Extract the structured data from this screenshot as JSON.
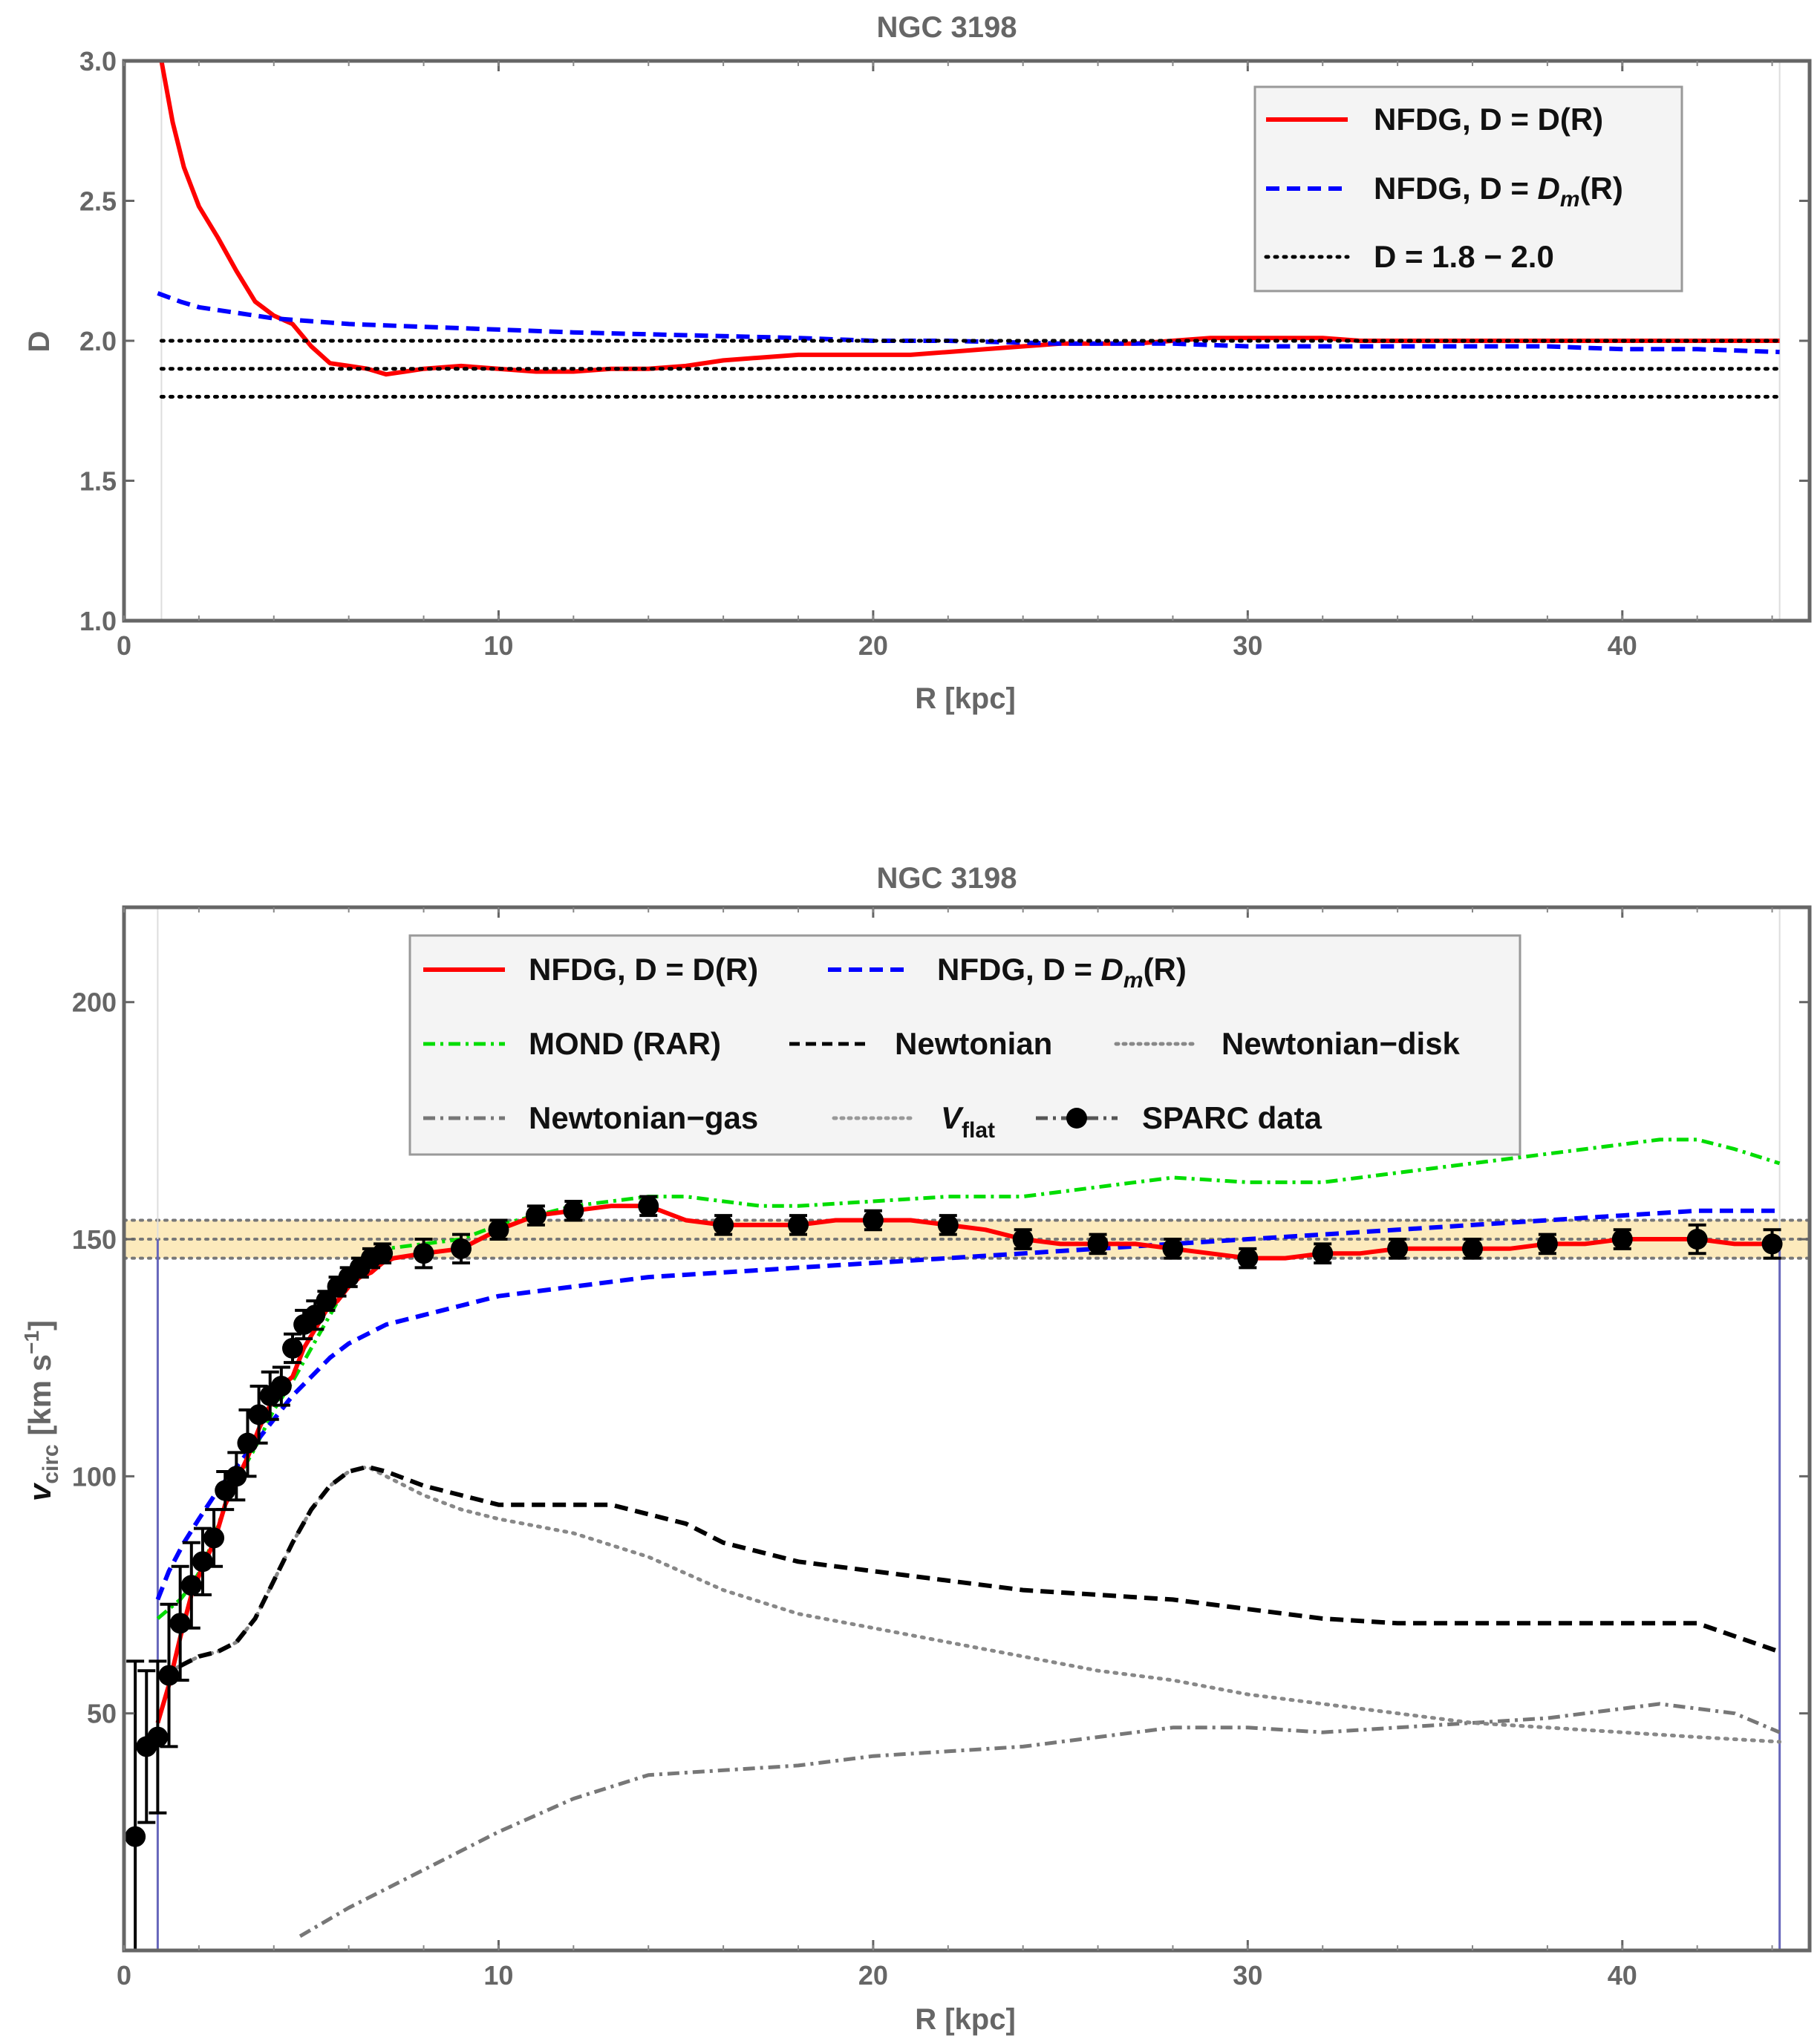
{
  "chart_data": [
    {
      "type": "line",
      "title": "NGC 3198",
      "xlabel": "R [kpc]",
      "ylabel": "D",
      "xlim": [
        0,
        45
      ],
      "ylim": [
        1.0,
        3.0
      ],
      "x_ticks": [
        "0",
        "10",
        "20",
        "30",
        "40"
      ],
      "y_ticks": [
        "1.0",
        "1.5",
        "2.0",
        "2.5",
        "3.0"
      ],
      "legend_position": "top-right",
      "legend": {
        "red": "NFDG, D = D(R)",
        "blue_prefix": "NFDG, D = ",
        "blue_italic": "D",
        "blue_sub": "m",
        "blue_suffix": "(R)",
        "black": "D = 1.8 − 2.0"
      },
      "series": [
        {
          "name": "NFDG, D = D(R)",
          "color": "#ff0000",
          "style": "solid",
          "x": [
            1.0,
            1.3,
            1.6,
            2.0,
            2.5,
            3.0,
            3.5,
            4.0,
            4.5,
            5.0,
            5.5,
            6.0,
            6.5,
            7.0,
            7.5,
            8.0,
            9.0,
            10,
            11,
            12,
            13,
            14,
            15,
            16,
            17,
            18,
            19,
            20,
            21,
            22,
            23,
            24,
            25,
            26,
            27,
            28,
            29,
            30,
            31,
            32,
            33,
            34,
            35,
            36,
            38,
            40,
            42,
            44.2
          ],
          "y": [
            3.0,
            2.78,
            2.62,
            2.48,
            2.37,
            2.25,
            2.14,
            2.09,
            2.06,
            1.98,
            1.92,
            1.91,
            1.9,
            1.88,
            1.89,
            1.9,
            1.91,
            1.9,
            1.89,
            1.89,
            1.9,
            1.9,
            1.91,
            1.93,
            1.94,
            1.95,
            1.95,
            1.95,
            1.95,
            1.96,
            1.97,
            1.98,
            1.99,
            1.99,
            1.99,
            2.0,
            2.01,
            2.01,
            2.01,
            2.01,
            2.0,
            2.0,
            2.0,
            2.0,
            2.0,
            2.0,
            2.0,
            2.0
          ]
        },
        {
          "name": "NFDG, D = Dm(R)",
          "color": "#0000ff",
          "style": "dashed",
          "x": [
            0.9,
            1.5,
            2,
            3,
            4,
            5,
            6,
            8,
            10,
            12,
            15,
            18,
            20,
            22,
            25,
            28,
            30,
            32,
            35,
            38,
            40,
            42,
            44.2
          ],
          "y": [
            2.17,
            2.14,
            2.12,
            2.1,
            2.08,
            2.07,
            2.06,
            2.05,
            2.04,
            2.03,
            2.02,
            2.01,
            2.0,
            2.0,
            1.99,
            1.99,
            1.98,
            1.98,
            1.98,
            1.98,
            1.97,
            1.97,
            1.96
          ]
        },
        {
          "name": "D = 1.8",
          "color": "#000000",
          "style": "dotted",
          "x": [
            1,
            44.2
          ],
          "y": [
            1.8,
            1.8
          ]
        },
        {
          "name": "D = 1.9",
          "color": "#000000",
          "style": "dotted",
          "x": [
            1,
            44.2
          ],
          "y": [
            1.9,
            1.9
          ]
        },
        {
          "name": "D = 2.0",
          "color": "#000000",
          "style": "dotted",
          "x": [
            1,
            44.2
          ],
          "y": [
            2.0,
            2.0
          ]
        }
      ]
    },
    {
      "type": "line",
      "title": "NGC 3198",
      "xlabel": "R [kpc]",
      "ylabel_main": "v",
      "ylabel_sub": "circ",
      "ylabel_unit": " [km s",
      "ylabel_sup": "−1",
      "ylabel_end": "]",
      "xlim": [
        0,
        45
      ],
      "ylim": [
        0,
        220
      ],
      "x_ticks": [
        "0",
        "10",
        "20",
        "30",
        "40"
      ],
      "y_ticks": [
        "50",
        "100",
        "150",
        "200"
      ],
      "legend_position": "top-center",
      "legend": {
        "nfdg_r": "NFDG, D = D(R)",
        "nfdg_dm_prefix": "NFDG, D = ",
        "nfdg_dm_italic": "D",
        "nfdg_dm_sub": "m",
        "nfdg_dm_suffix": "(R)",
        "mond": "MOND (RAR)",
        "newton": "Newtonian",
        "newton_disk": "Newtonian−disk",
        "newton_gas": "Newtonian−gas",
        "vflat_italic": "V",
        "vflat_sub": "flat",
        "sparc": "SPARC data"
      },
      "vflat": {
        "value": 150,
        "band": [
          146,
          154
        ]
      },
      "series": [
        {
          "name": "NFDG, D = D(R)",
          "color": "#ff0000",
          "style": "solid",
          "x": [
            0.9,
            1.2,
            1.5,
            1.8,
            2.1,
            2.4,
            2.7,
            3.0,
            3.3,
            3.6,
            3.9,
            4.2,
            4.5,
            4.8,
            5.1,
            5.4,
            5.7,
            6.0,
            6.3,
            6.6,
            6.9,
            7.2,
            8,
            9,
            10,
            11,
            12,
            13,
            14,
            15,
            16,
            17,
            18,
            19,
            20,
            21,
            22,
            23,
            24,
            25,
            26,
            27,
            28,
            29,
            30,
            31,
            32,
            33,
            34,
            35,
            36,
            37,
            38,
            39,
            40,
            41,
            42,
            43,
            44.2
          ],
          "y": [
            48,
            56,
            66,
            75,
            81,
            86,
            94,
            99,
            104,
            110,
            115,
            119,
            121,
            127,
            131,
            135,
            137,
            140,
            142,
            143,
            145,
            146,
            147,
            148,
            152,
            155,
            156,
            157,
            157,
            154,
            153,
            153,
            153,
            154,
            154,
            154,
            153,
            152,
            150,
            149,
            149,
            149,
            148,
            147,
            146,
            146,
            147,
            147,
            148,
            148,
            148,
            148,
            149,
            149,
            150,
            150,
            150,
            149,
            149
          ]
        },
        {
          "name": "NFDG, D = Dm(R)",
          "color": "#0000ff",
          "style": "dashed",
          "x": [
            0.9,
            1.2,
            1.6,
            2.0,
            2.5,
            3.0,
            3.5,
            4.0,
            4.5,
            5.0,
            5.5,
            6,
            7,
            8,
            9,
            10,
            12,
            14,
            16,
            18,
            20,
            22,
            24,
            26,
            28,
            30,
            32,
            34,
            36,
            38,
            40,
            42,
            44.2
          ],
          "y": [
            74,
            80,
            86,
            91,
            97,
            102,
            107,
            112,
            117,
            121,
            125,
            128,
            132,
            134,
            136,
            138,
            140,
            142,
            143,
            144,
            145,
            146,
            147,
            148,
            149,
            150,
            151,
            152,
            153,
            154,
            155,
            156,
            156
          ]
        },
        {
          "name": "MOND (RAR)",
          "color": "#00dd00",
          "style": "dashdot",
          "x": [
            0.9,
            1.2,
            1.5,
            1.8,
            2.1,
            2.4,
            2.7,
            3.0,
            3.5,
            4.0,
            4.5,
            5.0,
            5.5,
            6.0,
            6.5,
            7.0,
            8,
            9,
            10,
            11,
            12,
            13,
            14,
            15,
            16,
            17,
            18,
            20,
            22,
            24,
            26,
            28,
            30,
            32,
            34,
            36,
            38,
            40,
            41,
            42,
            43,
            44.2
          ],
          "y": [
            70,
            72,
            74,
            77,
            81,
            87,
            94,
            99,
            106,
            114,
            120,
            127,
            134,
            141,
            145,
            148,
            149,
            150,
            153,
            155,
            157,
            158,
            159,
            159,
            158,
            157,
            157,
            158,
            159,
            159,
            161,
            163,
            162,
            162,
            164,
            166,
            168,
            170,
            171,
            171,
            169,
            166
          ]
        },
        {
          "name": "Newtonian",
          "color": "#000000",
          "style": "dashed",
          "x": [
            1,
            1.5,
            2,
            2.5,
            3,
            3.5,
            4,
            4.5,
            5,
            5.5,
            6,
            6.5,
            7,
            8,
            9,
            10,
            11,
            12,
            13,
            14,
            15,
            16,
            18,
            20,
            22,
            24,
            26,
            28,
            30,
            32,
            34,
            36,
            38,
            40,
            42,
            44.2
          ],
          "y": [
            58,
            60,
            62,
            63,
            65,
            70,
            78,
            86,
            93,
            98,
            101,
            102,
            101,
            98,
            96,
            94,
            94,
            94,
            94,
            92,
            90,
            86,
            82,
            80,
            78,
            76,
            75,
            74,
            72,
            70,
            69,
            69,
            69,
            69,
            69,
            63
          ]
        },
        {
          "name": "Newtonian-disk",
          "color": "#888888",
          "style": "dotted",
          "x": [
            1,
            1.5,
            2,
            2.5,
            3,
            3.5,
            4,
            4.5,
            5,
            5.5,
            6,
            6.5,
            7,
            8,
            9,
            10,
            12,
            14,
            16,
            18,
            20,
            22,
            24,
            26,
            28,
            30,
            32,
            34,
            36,
            38,
            40,
            42,
            44.2
          ],
          "y": [
            58,
            60,
            62,
            63,
            65,
            70,
            78,
            86,
            93,
            98,
            101,
            102,
            100,
            96,
            93,
            91,
            88,
            83,
            76,
            71,
            68,
            65,
            62,
            59,
            57,
            54,
            52,
            50,
            48,
            47,
            46,
            45,
            44
          ]
        },
        {
          "name": "Newtonian-gas",
          "color": "#777777",
          "style": "dashdot",
          "x": [
            4.7,
            6,
            7,
            8,
            10,
            12,
            14,
            16,
            18,
            20,
            22,
            24,
            26,
            28,
            30,
            32,
            34,
            36,
            38,
            40,
            41,
            42,
            43,
            44.2
          ],
          "y": [
            3,
            9,
            13,
            17,
            25,
            32,
            37,
            38,
            39,
            41,
            42,
            43,
            45,
            47,
            47,
            46,
            47,
            48,
            49,
            51,
            52,
            51,
            50,
            46
          ]
        },
        {
          "name": "SPARC data",
          "color": "#000000",
          "style": "markers",
          "x": [
            0.3,
            0.6,
            0.9,
            1.2,
            1.5,
            1.8,
            2.1,
            2.4,
            2.7,
            3.0,
            3.3,
            3.6,
            3.9,
            4.2,
            4.5,
            4.8,
            5.1,
            5.4,
            5.7,
            6.0,
            6.3,
            6.6,
            6.9,
            8,
            9,
            10,
            11,
            12,
            14,
            16,
            18,
            20,
            22,
            24,
            26,
            28,
            30,
            32,
            34,
            36,
            38,
            40,
            42,
            44
          ],
          "y": [
            24,
            43,
            45,
            58,
            69,
            77,
            82,
            87,
            97,
            100,
            107,
            113,
            117,
            119,
            127,
            132,
            134,
            137,
            140,
            142,
            144,
            146,
            147,
            147,
            148,
            152,
            155,
            156,
            157,
            153,
            153,
            154,
            153,
            150,
            149,
            148,
            146,
            147,
            148,
            148,
            149,
            150,
            150,
            149
          ],
          "err": [
            37,
            16,
            16,
            15,
            12,
            9,
            7,
            6,
            4,
            5,
            7,
            6,
            5,
            4,
            3,
            3,
            3,
            2,
            2,
            2,
            2,
            2,
            2,
            3,
            3,
            2,
            2,
            2,
            2,
            2,
            2,
            2,
            2,
            2,
            2,
            2,
            2,
            2,
            2,
            2,
            2,
            2,
            3,
            3
          ]
        }
      ]
    }
  ]
}
